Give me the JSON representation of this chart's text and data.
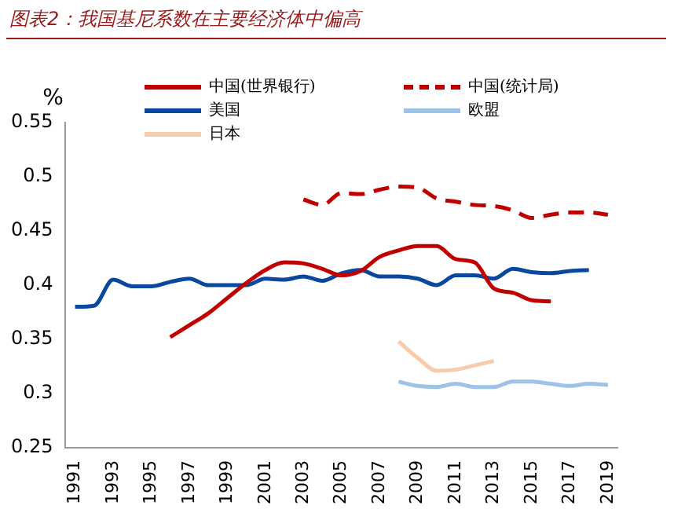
{
  "chart_data": {
    "type": "line",
    "title": "图表2：我国基尼系数在主要经济体中偏高",
    "ylabel": "%",
    "categories": [
      "1991",
      null,
      "1993",
      null,
      "1995",
      null,
      "1997",
      null,
      "1999",
      null,
      "2001",
      null,
      "2003",
      null,
      "2005",
      null,
      "2007",
      null,
      "2009",
      null,
      "2011",
      null,
      "2013",
      null,
      "2015",
      null,
      "2017",
      null,
      "2019"
    ],
    "series": [
      {
        "name": "中国(世界银行)",
        "color": "#c00000",
        "values": [
          null,
          null,
          null,
          null,
          null,
          0.352,
          0.363,
          0.374,
          0.388,
          0.402,
          0.414,
          0.421,
          0.42,
          0.415,
          0.409,
          0.413,
          0.426,
          0.432,
          0.436,
          0.436,
          0.424,
          0.421,
          0.397,
          0.393,
          0.386,
          0.385,
          null,
          null,
          null
        ]
      },
      {
        "name": "中国(统计局)",
        "color": "#c00000",
        "line_style": "dashed",
        "values": [
          null,
          null,
          null,
          null,
          null,
          null,
          null,
          null,
          null,
          null,
          null,
          null,
          0.479,
          0.474,
          0.485,
          0.484,
          0.488,
          0.491,
          0.49,
          0.48,
          0.477,
          0.474,
          0.473,
          0.469,
          0.462,
          0.465,
          0.467,
          0.467,
          0.465
        ]
      },
      {
        "name": "美国",
        "color": "#0a48a0",
        "values": [
          0.38,
          0.381,
          0.405,
          0.399,
          0.399,
          0.403,
          0.406,
          0.4,
          0.4,
          0.4,
          0.406,
          0.405,
          0.408,
          0.404,
          0.411,
          0.414,
          0.408,
          0.408,
          0.406,
          0.4,
          0.409,
          0.409,
          0.406,
          0.415,
          0.412,
          0.411,
          0.413,
          0.414,
          null
        ]
      },
      {
        "name": "欧盟",
        "color": "#9dc3e6",
        "values": [
          null,
          null,
          null,
          null,
          null,
          null,
          null,
          null,
          null,
          null,
          null,
          null,
          null,
          null,
          null,
          null,
          null,
          0.311,
          0.307,
          0.306,
          0.309,
          0.306,
          0.306,
          0.311,
          0.311,
          0.309,
          0.307,
          0.309,
          0.308
        ]
      },
      {
        "name": "日本",
        "color": "#f8cbad",
        "values": [
          null,
          null,
          null,
          null,
          null,
          null,
          null,
          null,
          null,
          null,
          null,
          null,
          null,
          null,
          null,
          null,
          null,
          0.348,
          0.333,
          0.321,
          0.322,
          0.326,
          0.33,
          null,
          null,
          null,
          null,
          null,
          null
        ]
      }
    ],
    "ylim": [
      0.25,
      0.55
    ],
    "yticks": [
      0.25,
      0.3,
      0.35,
      0.4,
      0.45,
      0.5,
      0.55
    ],
    "grid": false,
    "legend": "top",
    "marker": "none"
  }
}
